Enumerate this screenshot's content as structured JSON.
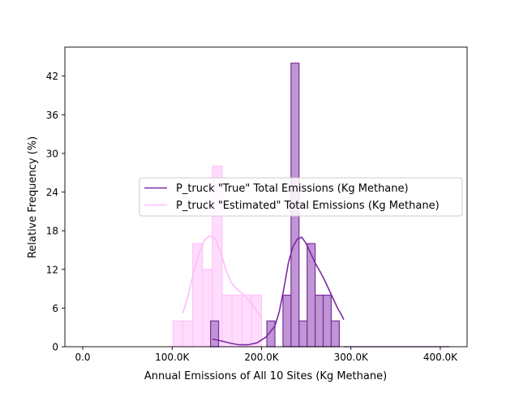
{
  "chart_data": {
    "type": "histogram",
    "xlabel": "Annual Emissions of All 10 Sites (Kg Methane)",
    "ylabel": "Relative Frequency (%)",
    "xlim": [
      -20000,
      430000
    ],
    "ylim": [
      0,
      46.5
    ],
    "x_ticks": [
      0,
      100000,
      200000,
      300000,
      400000
    ],
    "x_tick_labels": [
      "0.0",
      "100.0K",
      "200.0K",
      "300.0K",
      "400.0K"
    ],
    "y_ticks": [
      0,
      6,
      12,
      18,
      24,
      30,
      36,
      42
    ],
    "y_tick_labels": [
      "0",
      "6",
      "12",
      "18",
      "24",
      "30",
      "36",
      "42"
    ],
    "grid": false,
    "legend_position": "center-right",
    "series": [
      {
        "name": "P_truck \"Estimated\" Total Emissions (Kg Methane)",
        "fill_color": "#ffdcfc",
        "edge_color": "#ffc4fb",
        "line_color": "#ffbcfb",
        "bins": [
          {
            "x0": 101000,
            "x1": 112000,
            "value": 4
          },
          {
            "x0": 112000,
            "x1": 123000,
            "value": 4
          },
          {
            "x0": 123000,
            "x1": 134000,
            "value": 16
          },
          {
            "x0": 134000,
            "x1": 145000,
            "value": 12
          },
          {
            "x0": 145000,
            "x1": 156000,
            "value": 28
          },
          {
            "x0": 156000,
            "x1": 167000,
            "value": 8
          },
          {
            "x0": 167000,
            "x1": 178000,
            "value": 8
          },
          {
            "x0": 178000,
            "x1": 189000,
            "value": 8
          },
          {
            "x0": 189000,
            "x1": 200000,
            "value": 8
          }
        ],
        "kde": {
          "x": [
            112000,
            118000,
            124000,
            130000,
            136000,
            142000,
            148000,
            154000,
            160000,
            166000,
            172000,
            178000,
            184000,
            190000,
            196000,
            200000
          ],
          "y": [
            5.2,
            8,
            11.5,
            14.5,
            16.5,
            17.2,
            16.8,
            14.8,
            12,
            10,
            9,
            8.3,
            7.5,
            6.5,
            5.3,
            4.5
          ]
        }
      },
      {
        "name": "P_truck \"True\" Total Emissions (Kg Methane)",
        "fill_color": "#bf95d3",
        "edge_color": "#7c2ca4",
        "line_color": "#7b2aa5",
        "bins": [
          {
            "x0": 143000,
            "x1": 152000,
            "value": 4
          },
          {
            "x0": 152000,
            "x1": 161000,
            "value": 0
          },
          {
            "x0": 161000,
            "x1": 170000,
            "value": 0
          },
          {
            "x0": 170000,
            "x1": 179000,
            "value": 0
          },
          {
            "x0": 179000,
            "x1": 188000,
            "value": 0
          },
          {
            "x0": 188000,
            "x1": 197000,
            "value": 0
          },
          {
            "x0": 197000,
            "x1": 206000,
            "value": 0
          },
          {
            "x0": 206000,
            "x1": 215000,
            "value": 4
          },
          {
            "x0": 215000,
            "x1": 224000,
            "value": 0
          },
          {
            "x0": 224000,
            "x1": 233000,
            "value": 8
          },
          {
            "x0": 233000,
            "x1": 242000,
            "value": 44
          },
          {
            "x0": 242000,
            "x1": 251000,
            "value": 4
          },
          {
            "x0": 251000,
            "x1": 260000,
            "value": 16
          },
          {
            "x0": 260000,
            "x1": 269000,
            "value": 8
          },
          {
            "x0": 269000,
            "x1": 278000,
            "value": 8
          },
          {
            "x0": 278000,
            "x1": 287000,
            "value": 4
          }
        ],
        "kde": {
          "x": [
            145000,
            155000,
            165000,
            175000,
            185000,
            195000,
            205000,
            215000,
            220000,
            225000,
            230000,
            235000,
            240000,
            245000,
            250000,
            255000,
            260000,
            265000,
            270000,
            275000,
            280000,
            285000,
            290000,
            292000
          ],
          "y": [
            1.2,
            0.9,
            0.55,
            0.3,
            0.3,
            0.6,
            1.5,
            3.2,
            5.5,
            9,
            13,
            15.5,
            16.7,
            17,
            16,
            14.5,
            13,
            11.8,
            10.5,
            9,
            7.5,
            6,
            4.8,
            4.2
          ]
        },
        "tail_line": {
          "x0": 292000,
          "x1": 410000,
          "value": 0
        }
      }
    ]
  }
}
